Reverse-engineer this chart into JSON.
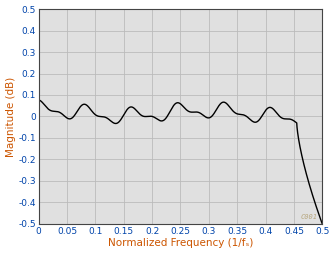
{
  "title": "",
  "xlabel": "Normalized Frequency (1/fₛ)",
  "ylabel": "Magnitude (dB)",
  "xlim": [
    0,
    0.5
  ],
  "ylim": [
    -0.5,
    0.5
  ],
  "yticks": [
    -0.5,
    -0.4,
    -0.3,
    -0.2,
    -0.1,
    0.0,
    0.1,
    0.2,
    0.3,
    0.4,
    0.5
  ],
  "xticks": [
    0,
    0.05,
    0.1,
    0.15,
    0.2,
    0.25,
    0.3,
    0.35,
    0.4,
    0.45,
    0.5
  ],
  "line_color": "#000000",
  "line_width": 1.0,
  "background_color": "#ffffff",
  "grid_color": "#bbbbbb",
  "axis_bg_color": "#e0e0e0",
  "axis_label_color": "#cc5500",
  "tick_label_color": "#0044aa",
  "watermark": "C001",
  "watermark_color": "#b8a880"
}
